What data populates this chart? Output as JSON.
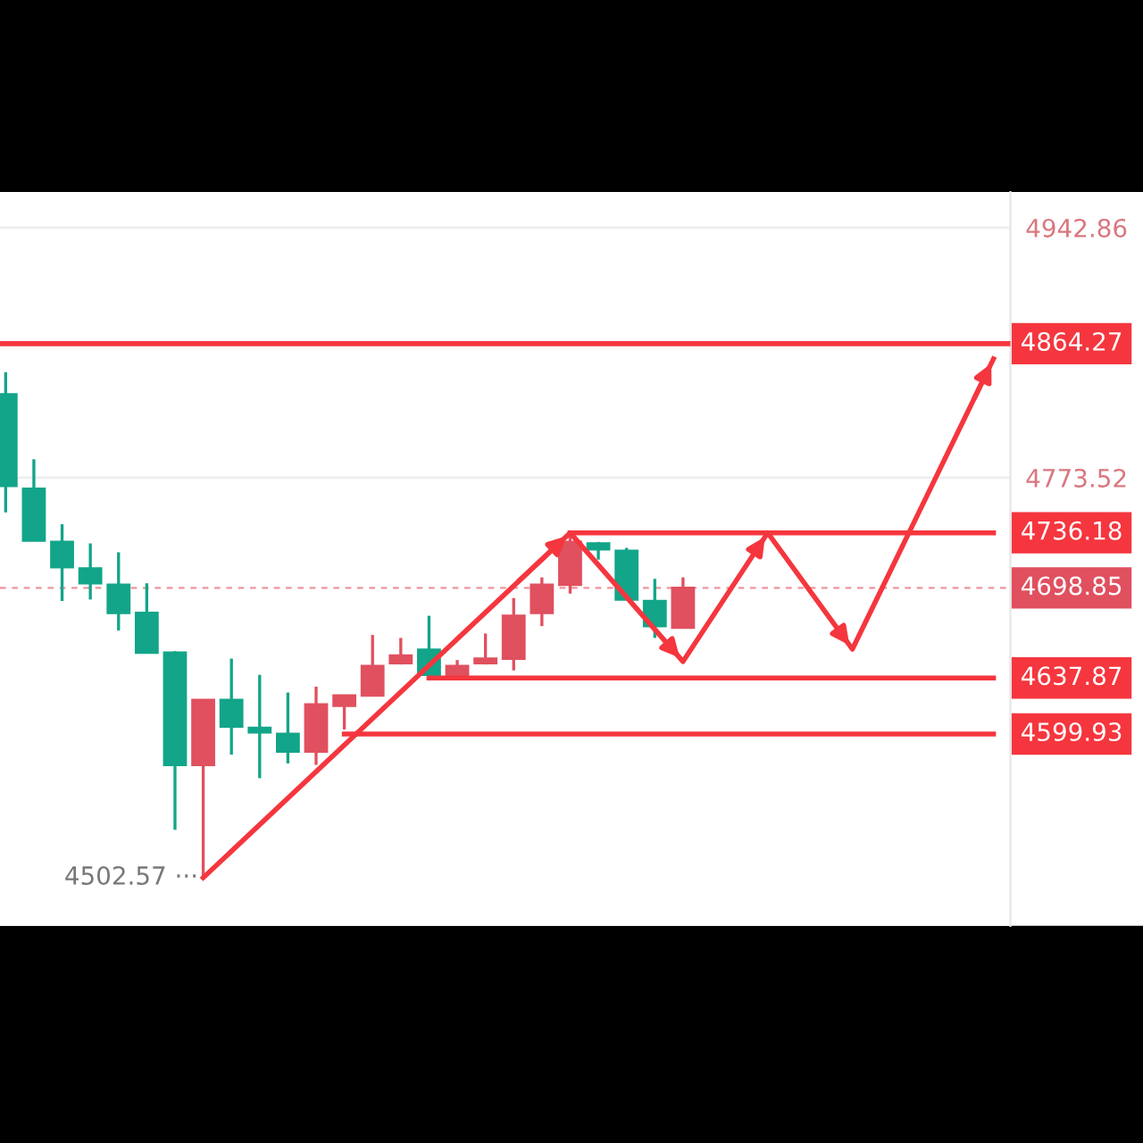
{
  "chart_data": {
    "type": "candlestick",
    "categories": [
      null,
      null,
      null,
      null,
      null,
      null,
      null,
      null,
      null,
      null,
      null,
      null,
      null,
      null,
      null,
      null,
      null,
      null,
      null,
      null,
      null,
      null,
      null,
      null,
      null,
      null,
      null,
      null,
      null,
      null,
      null,
      null,
      null,
      null,
      null,
      null
    ],
    "ohlc": [
      [
        4830,
        4845,
        4750,
        4768
      ],
      [
        4766,
        4786,
        4731,
        4731
      ],
      [
        4730,
        4742,
        4690,
        4713
      ],
      [
        4712,
        4729,
        4691,
        4702
      ],
      [
        4701,
        4723,
        4670,
        4682
      ],
      [
        4682,
        4702,
        4655,
        4655
      ],
      [
        4655,
        4656,
        4535,
        4579
      ],
      [
        4579,
        4623,
        4502.57,
        4623
      ],
      [
        4623,
        4651,
        4586,
        4605
      ],
      [
        4604,
        4640,
        4570,
        4601
      ],
      [
        4600,
        4628,
        4580,
        4588
      ],
      [
        4588,
        4632,
        4579,
        4620
      ],
      [
        4619,
        4626,
        4603,
        4626
      ],
      [
        4626,
        4667,
        4626,
        4646
      ],
      [
        4648,
        4665,
        4647,
        4653
      ],
      [
        4657,
        4680,
        4640,
        4640
      ],
      [
        4640,
        4650,
        4640,
        4646
      ],
      [
        4648,
        4668,
        4647,
        4651
      ],
      [
        4651,
        4692,
        4643,
        4680
      ],
      [
        4682,
        4706,
        4673,
        4701
      ],
      [
        4701,
        4736,
        4695,
        4730
      ],
      [
        4729,
        4730,
        4718,
        4725
      ],
      [
        4724,
        4726,
        4691,
        4691
      ],
      [
        4690,
        4705,
        4665,
        4673
      ],
      [
        4672,
        4706,
        4672,
        4698.85
      ],
      null,
      null,
      null,
      null,
      null,
      null,
      null,
      null,
      null,
      null,
      null
    ],
    "colors": [
      "#12a589",
      "#12a589",
      "#12a589",
      "#12a589",
      "#12a589",
      "#12a589",
      "#12a589",
      "#e0505f",
      "#12a589",
      "#12a589",
      "#12a589",
      "#e0505f",
      "#e0505f",
      "#e0505f",
      "#e0505f",
      "#12a589",
      "#e0505f",
      "#e0505f",
      "#e0505f",
      "#e0505f",
      "#e0505f",
      "#12a589",
      "#12a589",
      "#12a589",
      "#e0505f",
      null,
      null,
      null,
      null,
      null,
      null,
      null,
      null,
      null,
      null,
      null
    ],
    "ylim": [
      4470,
      4967
    ],
    "yticks": [
      4942.86,
      4773.52
    ],
    "tick_labels": "y",
    "grid": "y",
    "series": [
      {
        "type": "line",
        "color": "#f5363e",
        "values": [
          null,
          null,
          null,
          null,
          null,
          null,
          null,
          4502.57,
          null,
          null,
          null,
          null,
          null,
          null,
          null,
          null,
          null,
          null,
          null,
          null,
          4736.18,
          null,
          null,
          null,
          4649,
          null,
          null,
          4736.18,
          null,
          null,
          4657.4,
          null,
          null,
          null,
          null,
          4854
        ]
      },
      {
        "type": "line",
        "color": "#f5363e",
        "values": [
          null,
          null,
          null,
          null,
          null,
          null,
          null,
          null,
          null,
          null,
          null,
          null,
          null,
          null,
          null,
          null,
          null,
          null,
          null,
          null,
          4736.18,
          null,
          null,
          null,
          null,
          null,
          null,
          null,
          null,
          null,
          null,
          null,
          null,
          null,
          null,
          4736.18
        ],
        "value_labels": [
          null,
          null,
          null,
          null,
          null,
          null,
          null,
          null,
          null,
          null,
          null,
          null,
          null,
          null,
          null,
          null,
          null,
          null,
          null,
          null,
          null,
          null,
          null,
          null,
          null,
          null,
          null,
          null,
          null,
          null,
          null,
          null,
          null,
          null,
          null,
          "4736.18"
        ]
      },
      {
        "type": "line",
        "color": "#f5363e",
        "values": [
          null,
          null,
          null,
          null,
          null,
          null,
          null,
          null,
          null,
          null,
          null,
          null,
          null,
          null,
          null,
          4637.87,
          null,
          null,
          null,
          null,
          null,
          null,
          null,
          null,
          null,
          null,
          null,
          null,
          null,
          null,
          null,
          null,
          null,
          null,
          null,
          4637.87
        ],
        "value_labels": [
          null,
          null,
          null,
          null,
          null,
          null,
          null,
          null,
          null,
          null,
          null,
          null,
          null,
          null,
          null,
          null,
          null,
          null,
          null,
          null,
          null,
          null,
          null,
          null,
          null,
          null,
          null,
          null,
          null,
          null,
          null,
          null,
          null,
          null,
          null,
          "4637.87"
        ]
      },
      {
        "type": "line",
        "color": "#f5363e",
        "values": [
          null,
          null,
          null,
          null,
          null,
          null,
          null,
          null,
          null,
          null,
          null,
          null,
          4599.93,
          null,
          null,
          null,
          null,
          null,
          null,
          null,
          null,
          null,
          null,
          null,
          null,
          null,
          null,
          null,
          null,
          null,
          null,
          null,
          null,
          null,
          null,
          4599.93
        ],
        "value_labels": [
          null,
          null,
          null,
          null,
          null,
          null,
          null,
          null,
          null,
          null,
          null,
          null,
          null,
          null,
          null,
          null,
          null,
          null,
          null,
          null,
          null,
          null,
          null,
          null,
          null,
          null,
          null,
          null,
          null,
          null,
          null,
          null,
          null,
          null,
          null,
          "4599.93"
        ]
      }
    ],
    "ref_lines": [
      {
        "axis": "y",
        "value": 4864.27,
        "label": "4864.27",
        "color": "#f5363e"
      },
      {
        "axis": "y",
        "value": 4698.85,
        "label": "4698.85",
        "color": "#e0505f",
        "line_style": "dashed"
      }
    ],
    "annotations": [
      "4502.57 ···"
    ]
  }
}
